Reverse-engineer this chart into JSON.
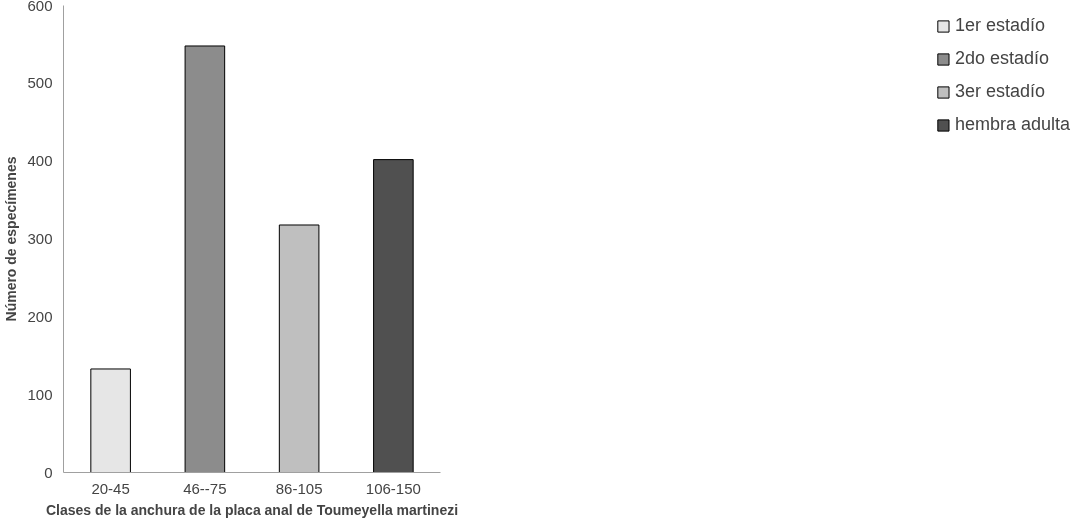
{
  "chart_data": {
    "type": "bar",
    "xlabel": "Clases de la anchura de la placa anal de Toumeyella martinezi",
    "ylabel": "Número de especímenes",
    "categories": [
      "20-45",
      "46--75",
      "86-105",
      "106-150"
    ],
    "series": [
      {
        "name": "1er estadío",
        "color": "#e6e6e6",
        "values": [
          133,
          null,
          null,
          null
        ]
      },
      {
        "name": "2do estadío",
        "color": "#8c8c8c",
        "values": [
          null,
          548,
          null,
          null
        ]
      },
      {
        "name": "3er estadío",
        "color": "#bfbfbf",
        "values": [
          null,
          null,
          318,
          null
        ]
      },
      {
        "name": "hembra adulta",
        "color": "#505050",
        "values": [
          null,
          null,
          null,
          402
        ]
      }
    ],
    "ylim": [
      0,
      600
    ],
    "yticks": [
      0,
      100,
      200,
      300,
      400,
      500,
      600
    ],
    "grid": false,
    "legend": "right"
  }
}
